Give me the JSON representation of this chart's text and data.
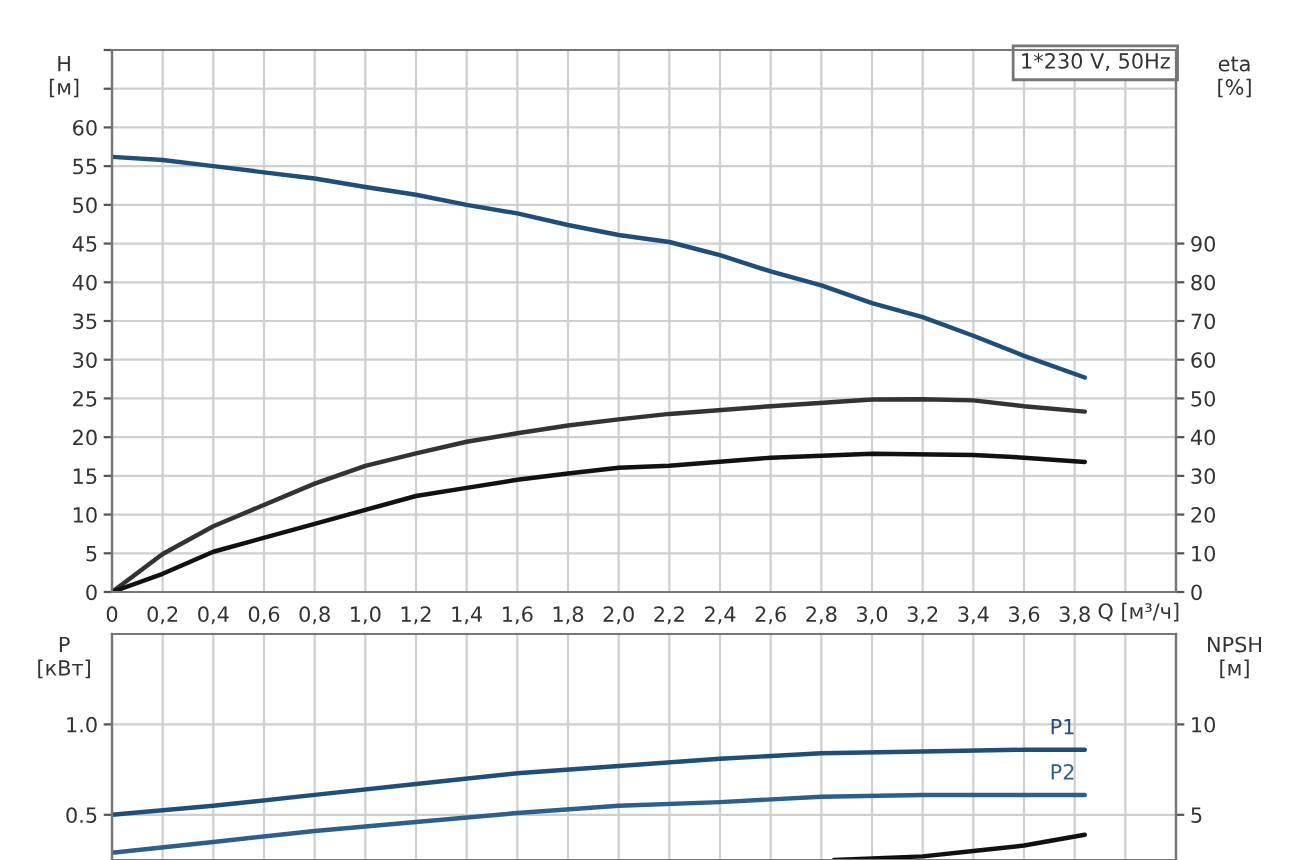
{
  "chart_data": [
    {
      "type": "line",
      "xlabel": "Q [м³/ч]",
      "ylabel": "H\n[м]",
      "y2label": "eta\n[%]",
      "annotations": [
        "1*230 V, 50Hz"
      ],
      "xlim": [
        0,
        4.2
      ],
      "ylim": [
        0,
        70
      ],
      "y2lim": [
        0,
        140
      ],
      "xticks": [
        0,
        {
          "value": 0.2,
          "label": "0,2"
        },
        {
          "value": 0.4,
          "label": "0,4"
        },
        {
          "value": 0.6,
          "label": "0,6"
        },
        {
          "value": 0.8,
          "label": "0,8"
        },
        {
          "value": 1.0,
          "label": "1,0"
        },
        {
          "value": 1.2,
          "label": "1,2"
        },
        {
          "value": 1.4,
          "label": "1,4"
        },
        {
          "value": 1.6,
          "label": "1,6"
        },
        {
          "value": 1.8,
          "label": "1,8"
        },
        {
          "value": 2.0,
          "label": "2,0"
        },
        {
          "value": 2.2,
          "label": "2,2"
        },
        {
          "value": 2.4,
          "label": "2,4"
        },
        {
          "value": 2.6,
          "label": "2,6"
        },
        {
          "value": 2.8,
          "label": "2,8"
        },
        {
          "value": 3.0,
          "label": "3,0"
        },
        {
          "value": 3.2,
          "label": "3,2"
        },
        {
          "value": 3.4,
          "label": "3,4"
        },
        {
          "value": 3.6,
          "label": "3,6"
        },
        {
          "value": 3.8,
          "label": "3,8"
        },
        {
          "value": 4.0,
          "label": null
        },
        {
          "value": 4.2,
          "label": null
        }
      ],
      "yticks": [
        0,
        5,
        10,
        15,
        20,
        25,
        30,
        35,
        40,
        45,
        50,
        55,
        60,
        {
          "value": 65,
          "label": null
        },
        {
          "value": 70,
          "label": null
        }
      ],
      "y2ticks": [
        0,
        10,
        20,
        30,
        40,
        50,
        60,
        70,
        80,
        90
      ],
      "grid": true,
      "legend": false,
      "marker": "none",
      "line_style": "solid",
      "series": [
        {
          "color": "#1f4e79",
          "axis": "y",
          "x": [
            0,
            0.2,
            0.4,
            0.6,
            0.8,
            1.0,
            1.2,
            1.4,
            1.6,
            1.8,
            2.0,
            2.2,
            2.4,
            2.6,
            2.8,
            3.0,
            3.2,
            3.4,
            3.6,
            3.84
          ],
          "values": [
            56.2,
            55.8,
            55.0,
            54.2,
            53.4,
            52.3,
            51.3,
            50.0,
            48.9,
            47.4,
            46.1,
            45.2,
            43.5,
            41.4,
            39.6,
            37.3,
            35.5,
            33.1,
            30.5,
            27.7
          ]
        },
        {
          "color": "#333333",
          "axis": "y2",
          "x": [
            0,
            0.2,
            0.4,
            0.8,
            1.0,
            1.2,
            1.4,
            1.6,
            1.8,
            2.0,
            2.2,
            2.6,
            3.0,
            3.2,
            3.4,
            3.6,
            3.84
          ],
          "values": [
            0,
            9.8,
            17,
            28,
            32.6,
            35.8,
            38.8,
            41,
            43,
            44.6,
            46,
            48,
            49.7,
            49.8,
            49.5,
            48,
            46.6
          ]
        },
        {
          "color": "#111111",
          "axis": "y2",
          "x": [
            0,
            0.2,
            0.4,
            0.8,
            1.0,
            1.2,
            1.4,
            1.6,
            1.8,
            2.0,
            2.2,
            2.6,
            3.0,
            3.4,
            3.6,
            3.84
          ],
          "values": [
            0,
            4.7,
            10.4,
            17.6,
            21.2,
            24.8,
            26.9,
            29,
            30.6,
            32.1,
            32.6,
            34.7,
            35.7,
            35.4,
            34.7,
            33.6
          ]
        }
      ]
    },
    {
      "type": "line",
      "ylabel": "P\n[кВт]",
      "y2label": "NPSH\n[м]",
      "xlim": [
        0,
        4.2
      ],
      "ylim": [
        0.25,
        1.5
      ],
      "y2lim": [
        2.5,
        15
      ],
      "xticks": [
        0,
        0.2,
        0.4,
        0.6,
        0.8,
        1.0,
        1.2,
        1.4,
        1.6,
        1.8,
        2.0,
        2.2,
        2.4,
        2.6,
        2.8,
        3.0,
        3.2,
        3.4,
        3.6,
        3.8,
        4.0,
        4.2
      ],
      "yticks": [
        0.5,
        {
          "value": 1,
          "label": "1.0"
        }
      ],
      "y2ticks": [
        5,
        10
      ],
      "tick_labels": "y",
      "grid": true,
      "legend": false,
      "marker": "none",
      "line_style": "solid",
      "series": [
        {
          "name": "P1",
          "color": "#1f4e79",
          "axis": "y",
          "x": [
            0,
            0.4,
            0.8,
            1.2,
            1.6,
            2.0,
            2.4,
            2.8,
            3.2,
            3.6,
            3.84
          ],
          "values": [
            0.5,
            0.55,
            0.61,
            0.67,
            0.73,
            0.77,
            0.81,
            0.84,
            0.85,
            0.86,
            0.86
          ]
        },
        {
          "name": "P2",
          "color": "#2e5f8a",
          "axis": "y",
          "x": [
            0,
            0.4,
            0.8,
            1.2,
            1.6,
            2.0,
            2.4,
            2.8,
            3.2,
            3.6,
            3.84
          ],
          "values": [
            0.29,
            0.35,
            0.41,
            0.46,
            0.51,
            0.55,
            0.57,
            0.6,
            0.61,
            0.61,
            0.61
          ]
        },
        {
          "color": "#111111",
          "axis": "y2",
          "x": [
            2.85,
            3.2,
            3.4,
            3.6,
            3.84
          ],
          "values": [
            2.5,
            2.7,
            3.0,
            3.3,
            3.9
          ]
        }
      ]
    }
  ]
}
